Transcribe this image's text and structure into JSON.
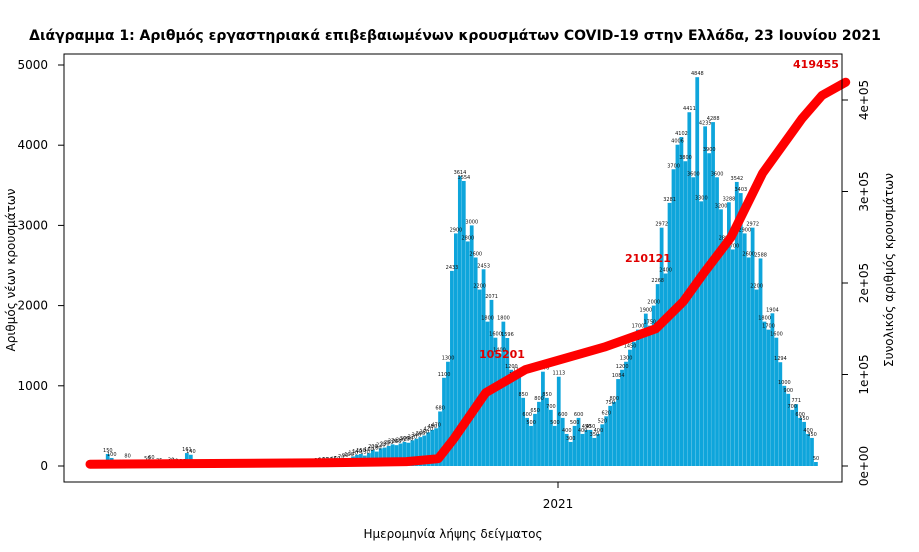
{
  "chart_data": {
    "type": "bar",
    "title": "Διάγραμμα 1: Αριθμός εργαστηριακά επιβεβαιωμένων κρουσμάτων COVID-19 στην Ελλάδα, 23 Ιουνίου 2021",
    "xlabel": "Ημερομηνία λήψης δείγματος",
    "ylabel": "Αριθμός νέων κρουσμάτων",
    "y2label": "Συνολικός αριθμός κρουσμάτων",
    "ylim": [
      0,
      5000
    ],
    "y2lim": [
      0,
      420000
    ],
    "yticks": [
      "0",
      "1000",
      "2000",
      "3000",
      "4000",
      "5000"
    ],
    "y2ticks": [
      "0e+00",
      "1e+05",
      "2e+05",
      "3e+05",
      "4e+05"
    ],
    "xtick": "2021",
    "grid": false,
    "colors": {
      "bars": "#0ea5db",
      "cumulative": "#ff0000",
      "annotation": "#e00000"
    },
    "series": [
      {
        "type": "bar",
        "values": [
          0,
          2,
          0,
          3,
          150,
          100,
          3,
          4,
          5,
          80,
          4,
          6,
          5,
          3,
          50,
          60,
          4,
          25,
          3,
          3,
          30,
          20,
          10,
          15,
          161,
          140,
          3,
          5,
          2,
          3,
          1,
          2,
          3,
          3,
          3,
          4,
          2,
          5,
          3,
          5,
          6,
          3,
          5,
          4,
          4,
          6,
          10,
          7,
          10,
          8,
          12,
          13,
          16,
          18,
          14,
          15,
          20,
          23,
          30,
          35,
          40,
          45,
          50,
          70,
          90,
          100,
          120,
          140,
          150,
          130,
          160,
          200,
          180,
          220,
          230,
          250,
          270,
          260,
          280,
          300,
          290,
          320,
          340,
          360,
          380,
          420,
          450,
          470,
          680,
          1100,
          1300,
          2433,
          2900,
          3614,
          3554,
          2800,
          3000,
          2600,
          2200,
          2453,
          1800,
          2071,
          1600,
          1400,
          1800,
          1596,
          1200,
          1100,
          1156,
          850,
          600,
          500,
          650,
          800,
          1176,
          850,
          700,
          500,
          1113,
          600,
          400,
          300,
          500,
          600,
          400,
          450,
          450,
          350,
          400,
          520,
          620,
          750,
          800,
          1084,
          1200,
          1300,
          1450,
          1549,
          1700,
          1600,
          1900,
          1750,
          2000,
          2268,
          2972,
          2400,
          3281,
          3700,
          4006,
          4102,
          3800,
          4411,
          3600,
          4848,
          3300,
          4235,
          3900,
          4288,
          3600,
          3200,
          2800,
          3288,
          2700,
          3542,
          3403,
          2900,
          2600,
          2972,
          2200,
          2588,
          1800,
          1700,
          1904,
          1600,
          1294,
          1000,
          900,
          700,
          771,
          600,
          550,
          400,
          350,
          50
        ]
      },
      {
        "type": "line",
        "name": "cumulative",
        "end_label": "419455",
        "mid_labels": [
          "105201",
          "210121"
        ],
        "points": [
          [
            0,
            2000
          ],
          [
            60,
            3500
          ],
          [
            80,
            4800
          ],
          [
            88,
            8000
          ],
          [
            92,
            30000
          ],
          [
            100,
            80000
          ],
          [
            110,
            105201
          ],
          [
            130,
            130000
          ],
          [
            143,
            150000
          ],
          [
            150,
            180000
          ],
          [
            155,
            210121
          ],
          [
            162,
            250000
          ],
          [
            170,
            320000
          ],
          [
            180,
            380000
          ],
          [
            185,
            405000
          ],
          [
            191,
            419455
          ]
        ]
      }
    ]
  }
}
